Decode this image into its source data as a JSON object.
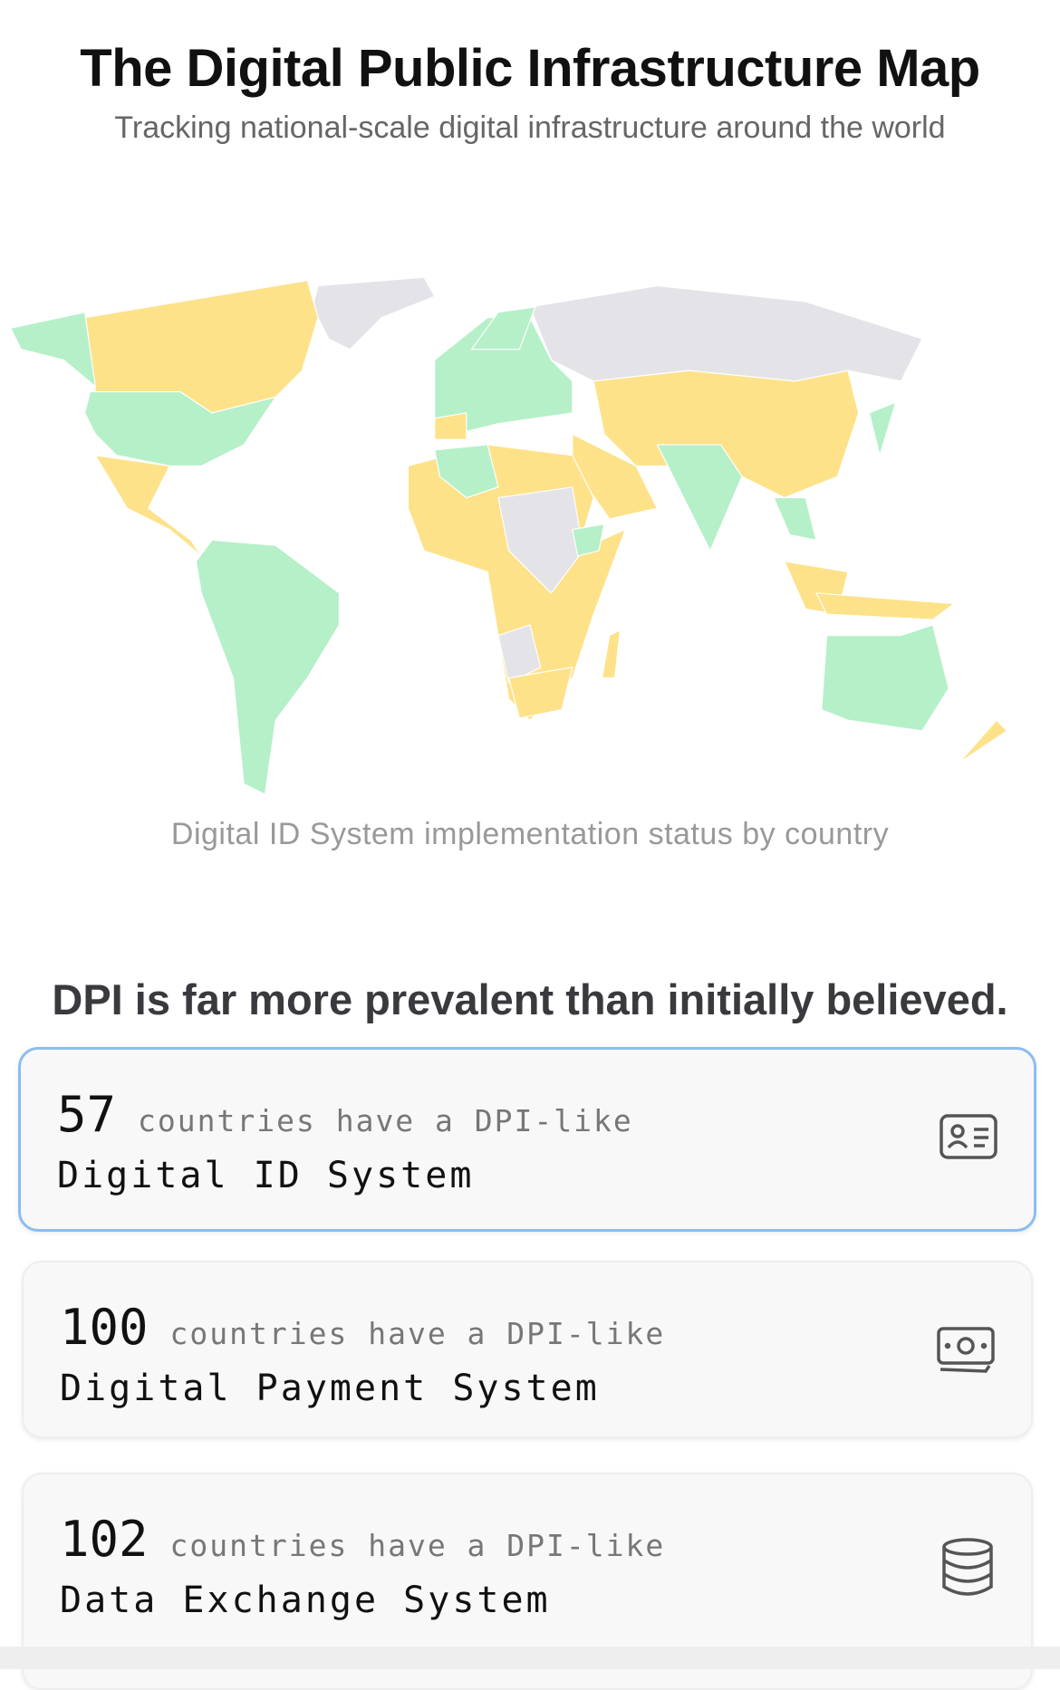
{
  "header": {
    "title": "The Digital Public Infrastructure Map",
    "subtitle": "Tracking national-scale digital infrastructure around the world"
  },
  "map": {
    "caption": "Digital ID System implementation status by country"
  },
  "section": {
    "heading": "DPI is far more prevalent than initially believed."
  },
  "cards": [
    {
      "count": 57,
      "text": "countries have a DPI-like",
      "system": "Digital ID System"
    },
    {
      "count": 100,
      "text": "countries have a DPI-like",
      "system": "Digital Payment System"
    },
    {
      "count": 102,
      "text": "countries have a DPI-like",
      "system": "Data Exchange System"
    }
  ]
}
